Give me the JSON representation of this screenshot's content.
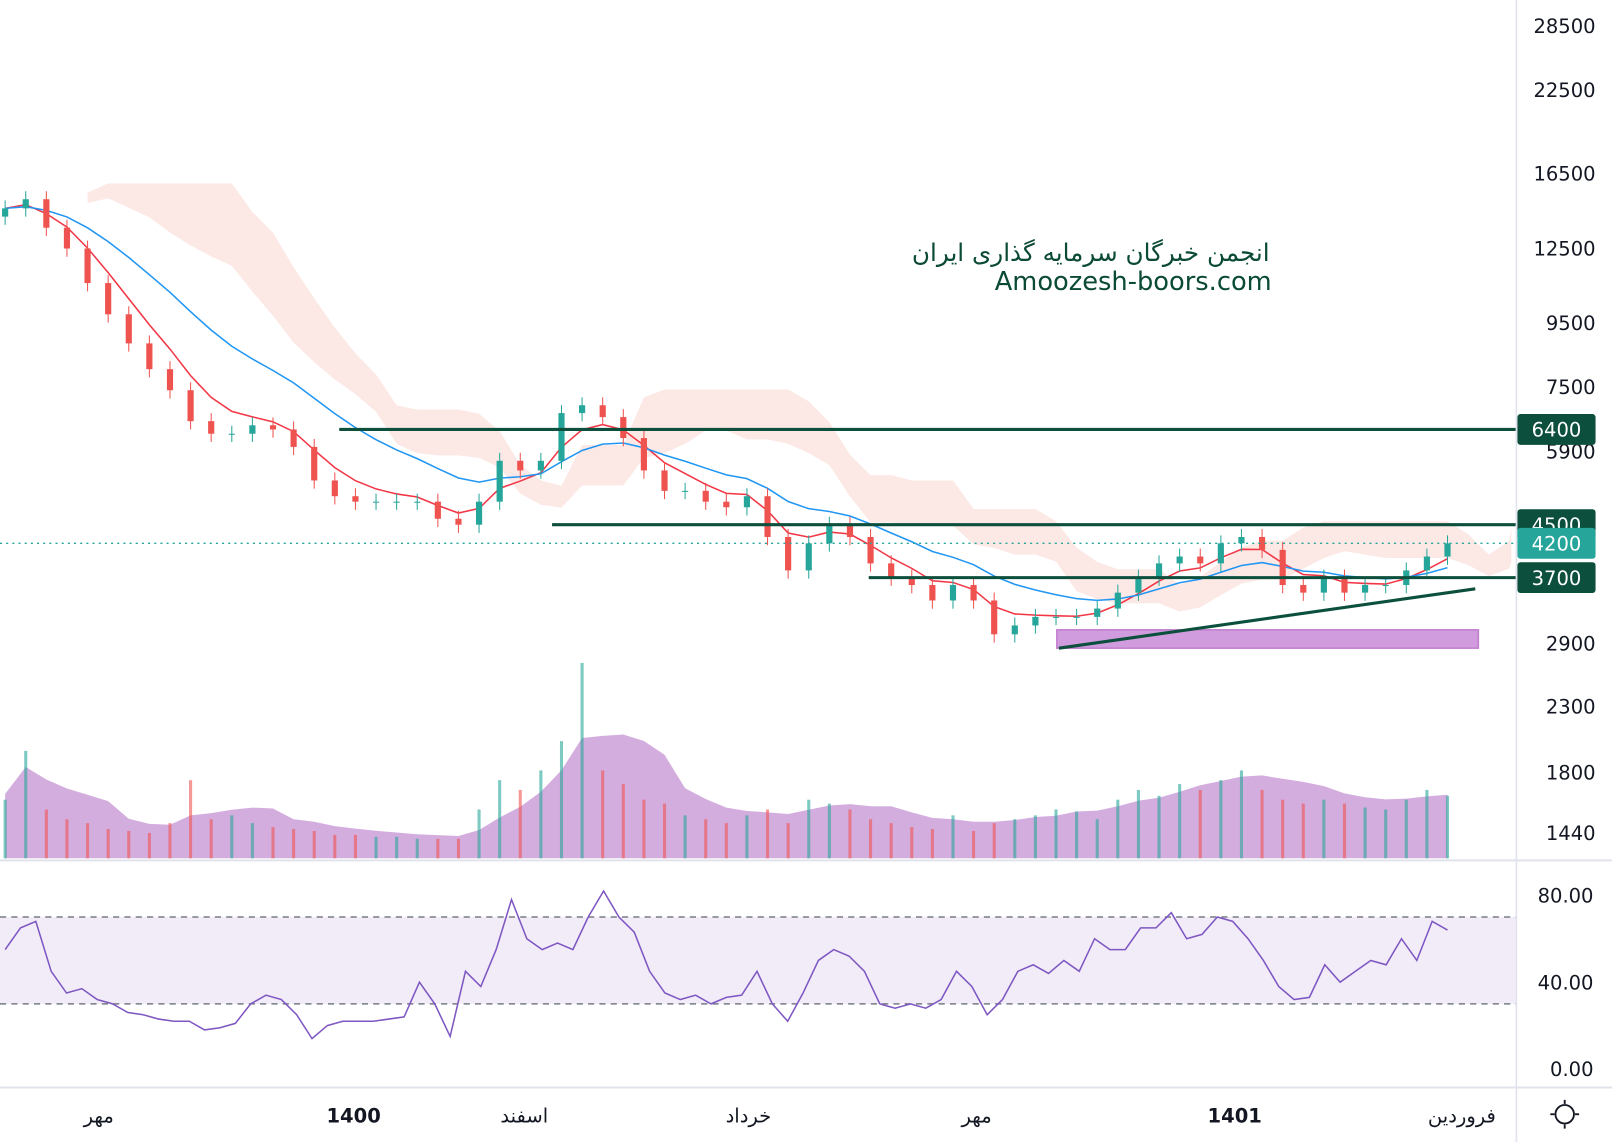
{
  "chart_data": [
    {
      "type": "candlestick",
      "scale": "log",
      "y_ticks": [
        "28500",
        "22500",
        "16500",
        "12500",
        "9500",
        "7500",
        "5900",
        "2900",
        "2300",
        "1800",
        "1440"
      ],
      "x_ticks": [
        "مهر",
        "1400",
        "اسفند",
        "خرداد",
        "مهر",
        "1401",
        "فروردین"
      ],
      "closes": [
        14500,
        15000,
        13500,
        12500,
        11000,
        9800,
        8800,
        8000,
        7400,
        6600,
        6300,
        6300,
        6500,
        6400,
        6000,
        5300,
        5000,
        4900,
        4900,
        4900,
        4900,
        4600,
        4500,
        4900,
        5700,
        5500,
        5700,
        6800,
        7000,
        6700,
        6200,
        5500,
        5100,
        5100,
        4900,
        4800,
        5000,
        4300,
        3800,
        4200,
        4500,
        4300,
        3900,
        3700,
        3600,
        3400,
        3600,
        3400,
        3000,
        3100,
        3200,
        3200,
        3200,
        3300,
        3500,
        3700,
        3900,
        4000,
        3900,
        4200,
        4300,
        4100,
        3600,
        3500,
        3700,
        3500,
        3600,
        3600,
        3800,
        4000,
        4200
      ],
      "volume": [
        30,
        55,
        25,
        20,
        18,
        15,
        14,
        13,
        18,
        40,
        20,
        22,
        18,
        16,
        15,
        14,
        12,
        12,
        11,
        11,
        10,
        10,
        10,
        25,
        40,
        35,
        45,
        60,
        100,
        45,
        38,
        30,
        28,
        22,
        20,
        18,
        22,
        25,
        18,
        30,
        28,
        25,
        20,
        18,
        16,
        15,
        22,
        14,
        18,
        20,
        22,
        25,
        24,
        20,
        30,
        35,
        32,
        38,
        35,
        40,
        45,
        35,
        30,
        28,
        30,
        28,
        26,
        25,
        30,
        35,
        32
      ],
      "series": [
        {
          "name": "",
          "kind": "moving-average-fast",
          "color": "#f23645"
        },
        {
          "name": "",
          "kind": "moving-average-slow",
          "color": "#2196f3"
        }
      ],
      "levels": [
        {
          "label": "6400",
          "value": 6400,
          "color": "#0b4f3c"
        },
        {
          "label": "4500",
          "value": 4500,
          "color": "#0b4f3c"
        },
        {
          "label": "4200",
          "value": 4200,
          "color": "#26a69a",
          "kind": "last-price"
        },
        {
          "label": "3700",
          "value": 3700,
          "color": "#0b4f3c"
        }
      ],
      "trendline": {
        "from": 2850,
        "to": 3550,
        "color": "#0b4f3c"
      },
      "zone": {
        "low": 2850,
        "high": 3050,
        "color": "#b45cc8"
      },
      "colors": {
        "up": "#26a69a",
        "down": "#ef5350",
        "cloud": "#fbe0dc",
        "volume_area": "#b06ac4"
      }
    },
    {
      "type": "line",
      "name": "",
      "y_ticks": [
        "80.00",
        "40.00",
        "0.00"
      ],
      "ylim": [
        0,
        80
      ],
      "bands": [
        30,
        70
      ],
      "color": "#7e57c2",
      "values": [
        55,
        65,
        68,
        45,
        35,
        37,
        32,
        30,
        26,
        25,
        23,
        22,
        22,
        18,
        19,
        21,
        30,
        34,
        32,
        25,
        14,
        20,
        22,
        22,
        22,
        23,
        24,
        40,
        30,
        15,
        45,
        38,
        55,
        78,
        60,
        55,
        58,
        55,
        70,
        82,
        70,
        63,
        45,
        35,
        32,
        34,
        30,
        33,
        34,
        45,
        30,
        22,
        35,
        50,
        55,
        52,
        45,
        30,
        28,
        30,
        28,
        32,
        45,
        38,
        25,
        32,
        45,
        48,
        44,
        50,
        45,
        60,
        55,
        55,
        65,
        65,
        72,
        60,
        62,
        70,
        68,
        60,
        50,
        38,
        32,
        33,
        48,
        40,
        45,
        50,
        48,
        60,
        50,
        68,
        64
      ]
    }
  ],
  "watermark": {
    "line1": "انجمن خبرگان سرمایه گذاری ایران",
    "line2": "Amoozesh-boors.com"
  },
  "settings_icon": "sun-gear-icon"
}
